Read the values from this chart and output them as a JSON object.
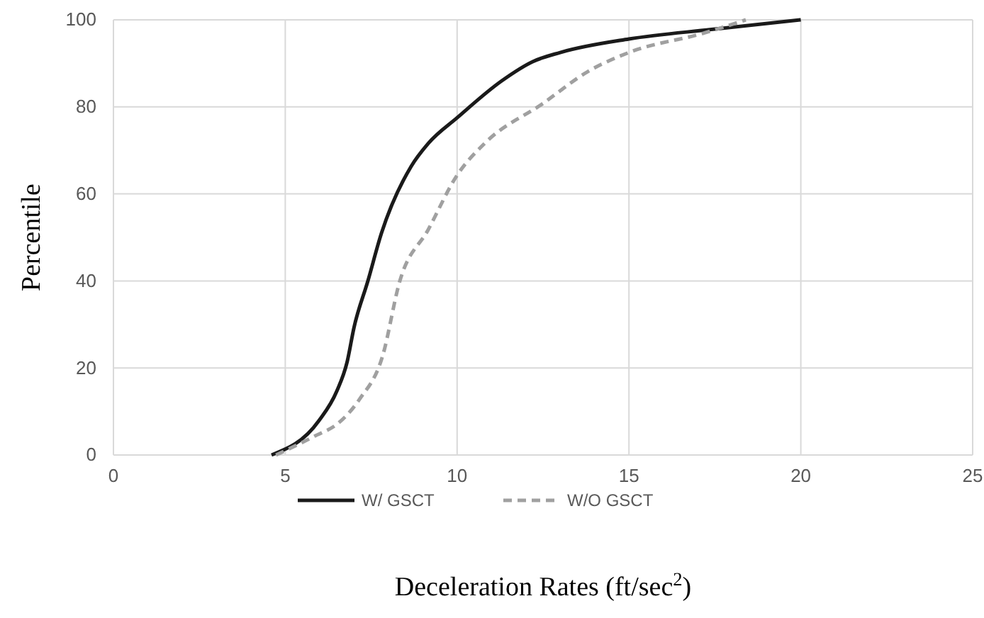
{
  "chart_data": {
    "type": "line",
    "xlabel": "Deceleration Rates (ft/sec$^{2}$)",
    "ylabel": "Percentile",
    "xlim": [
      0,
      25
    ],
    "xticks": [
      0,
      5,
      10,
      15,
      20,
      25
    ],
    "ylim": [
      0,
      100
    ],
    "yticks": [
      0,
      20,
      40,
      60,
      80,
      100
    ],
    "grid": true,
    "legend": "bottom",
    "marker": "none",
    "series": [
      {
        "name": "W/ GSCT",
        "color": "#1a1a1a",
        "line_style": "solid",
        "x": [
          4.6,
          5.98,
          6.5,
          6.8,
          7.0,
          7.4,
          7.8,
          8.66,
          9.16,
          10,
          11.3,
          12.2,
          13,
          15,
          17.4,
          20
        ],
        "values": [
          0,
          7.9,
          14.7,
          21.4,
          29.3,
          39.9,
          51,
          66.3,
          71.6,
          77.5,
          86,
          90.4,
          92.5,
          95.6,
          97.8,
          100
        ]
      },
      {
        "name": "W/O GSCT",
        "color": "#a0a0a0",
        "line_style": "dashed",
        "x": [
          4.73,
          5.82,
          6.57,
          7.16,
          7.83,
          8.33,
          9.16,
          10,
          10.8,
          12.5,
          13.8,
          15,
          17.2,
          18.4
        ],
        "values": [
          0,
          4.2,
          7.5,
          12.8,
          22.7,
          39.9,
          51.8,
          64.3,
          71.6,
          80.8,
          88.1,
          92.5,
          97,
          100
        ]
      }
    ]
  }
}
